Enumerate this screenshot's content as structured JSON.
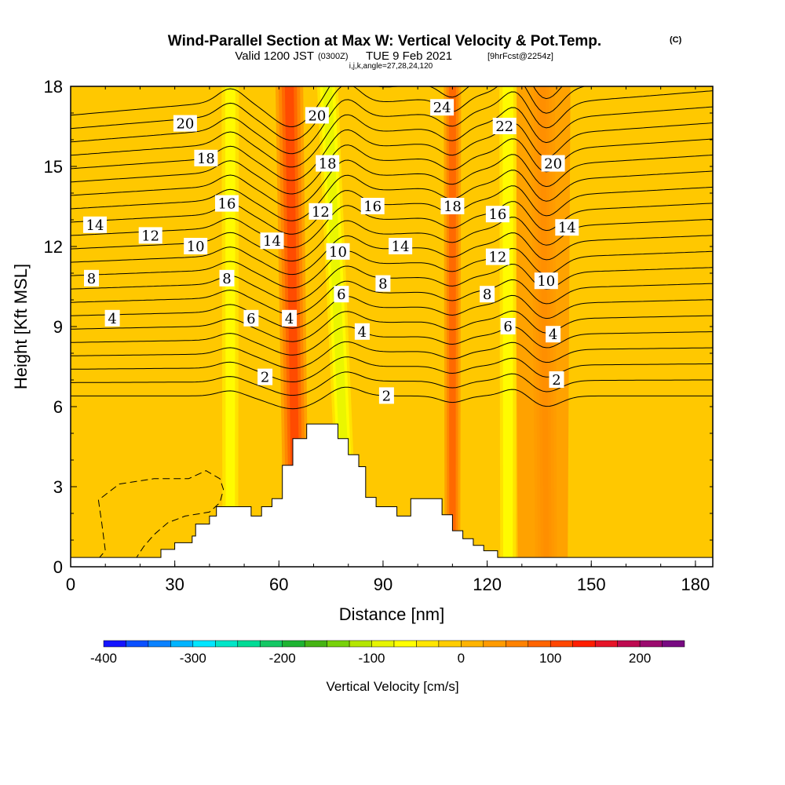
{
  "header": {
    "title": "Wind-Parallel Section at Max W: Vertical Velocity & Pot.Temp.",
    "title_mark": "(C)",
    "subtitle_main_a": "Valid 1200 JST",
    "subtitle_utc": "(0300Z)",
    "subtitle_main_b": "TUE 9 Feb 2021",
    "subtitle_fcst": "[9hrFcst@2254z]",
    "subtitle_indices": "i,j,k,angle=27,28,24,120"
  },
  "chart_data": {
    "type": "heatmap",
    "title": "Wind-Parallel Section at Max W: Vertical Velocity & Pot.Temp.",
    "xlabel": "Distance [nm]",
    "ylabel": "Height [Kft MSL]",
    "xlim": [
      0,
      185
    ],
    "ylim": [
      0,
      18
    ],
    "x_ticks": [
      "0",
      "30",
      "60",
      "90",
      "120",
      "150",
      "180"
    ],
    "y_ticks": [
      "0",
      "3",
      "6",
      "9",
      "12",
      "15",
      "18"
    ],
    "x_tick_values": [
      0,
      30,
      60,
      90,
      120,
      150,
      180
    ],
    "y_tick_values": [
      0,
      3,
      6,
      9,
      12,
      15,
      18
    ],
    "colorbar": {
      "label": "Vertical Velocity [cm/s]",
      "min": -400,
      "max": 250,
      "step": 25,
      "ticks": [
        "-400",
        "-300",
        "-200",
        "-100",
        "0",
        "100",
        "200"
      ],
      "tick_values": [
        -400,
        -300,
        -200,
        -100,
        0,
        100,
        200
      ],
      "colors": [
        "#1414ff",
        "#0a50ff",
        "#0a82ff",
        "#00b4ff",
        "#00e6ff",
        "#00e6c8",
        "#00dc96",
        "#14c864",
        "#1eb432",
        "#46b414",
        "#78d20a",
        "#b4e600",
        "#e6f500",
        "#ffff00",
        "#ffe600",
        "#ffcd00",
        "#ffb400",
        "#ff9b00",
        "#ff8200",
        "#ff6400",
        "#ff4600",
        "#ff1e00",
        "#e61428",
        "#be0a50",
        "#9b0a6e",
        "#780a82"
      ]
    },
    "terrain_kft": [
      [
        0,
        0.35
      ],
      [
        26,
        0.35
      ],
      [
        26,
        0.65
      ],
      [
        30,
        0.65
      ],
      [
        30,
        0.9
      ],
      [
        35,
        0.9
      ],
      [
        35,
        1.15
      ],
      [
        36,
        1.15
      ],
      [
        36,
        1.6
      ],
      [
        40,
        1.6
      ],
      [
        40,
        1.9
      ],
      [
        42,
        1.9
      ],
      [
        42,
        2.25
      ],
      [
        52,
        2.25
      ],
      [
        52,
        1.9
      ],
      [
        55,
        1.9
      ],
      [
        55,
        2.25
      ],
      [
        58,
        2.25
      ],
      [
        58,
        2.55
      ],
      [
        61,
        2.55
      ],
      [
        61,
        3.8
      ],
      [
        64,
        3.8
      ],
      [
        64,
        4.8
      ],
      [
        68,
        4.8
      ],
      [
        68,
        5.35
      ],
      [
        77,
        5.35
      ],
      [
        77,
        4.8
      ],
      [
        80,
        4.8
      ],
      [
        80,
        4.2
      ],
      [
        83,
        4.2
      ],
      [
        83,
        3.75
      ],
      [
        85,
        3.75
      ],
      [
        85,
        2.6
      ],
      [
        88,
        2.6
      ],
      [
        88,
        2.25
      ],
      [
        94,
        2.25
      ],
      [
        94,
        1.9
      ],
      [
        98,
        1.9
      ],
      [
        98,
        2.55
      ],
      [
        107,
        2.55
      ],
      [
        107,
        1.95
      ],
      [
        110,
        1.95
      ],
      [
        110,
        1.35
      ],
      [
        113,
        1.35
      ],
      [
        113,
        1.05
      ],
      [
        116,
        1.05
      ],
      [
        116,
        0.8
      ],
      [
        119,
        0.8
      ],
      [
        119,
        0.6
      ],
      [
        123,
        0.6
      ],
      [
        123,
        0.35
      ],
      [
        185,
        0.35
      ]
    ],
    "updraft_bands": [
      {
        "x_base": 65,
        "x_top": 63,
        "w": 110,
        "halfwidth": 4
      },
      {
        "x_base": 137,
        "x_top": 136,
        "w": 100,
        "halfwidth": 3.5
      },
      {
        "x_base": 110,
        "x_top": 110,
        "w": 85,
        "halfwidth": 2.5
      },
      {
        "x_base": 136,
        "x_top": 136,
        "w": 40,
        "halfwidth": 8
      }
    ],
    "downdraft_bands": [
      {
        "x_base": 80,
        "x_top": 74,
        "w": -90,
        "halfwidth": 3
      },
      {
        "x_base": 46,
        "x_top": 46,
        "w": -60,
        "halfwidth": 2.5
      },
      {
        "x_base": 126,
        "x_top": 126,
        "w": -65,
        "halfwidth": 2.5
      }
    ],
    "theta_contours": {
      "first_height_kft": 6.4,
      "spacing_kft": 0.55,
      "count": 22,
      "labels": [
        {
          "text": "20",
          "x": 33,
          "y": 16.6
        },
        {
          "text": "18",
          "x": 39,
          "y": 15.3
        },
        {
          "text": "16",
          "x": 45,
          "y": 13.6
        },
        {
          "text": "14",
          "x": 7,
          "y": 12.8
        },
        {
          "text": "12",
          "x": 23,
          "y": 12.4
        },
        {
          "text": "10",
          "x": 36,
          "y": 12.0
        },
        {
          "text": "8",
          "x": 6,
          "y": 10.8
        },
        {
          "text": "4",
          "x": 12,
          "y": 9.3
        },
        {
          "text": "14",
          "x": 58,
          "y": 12.2
        },
        {
          "text": "8",
          "x": 45,
          "y": 10.8
        },
        {
          "text": "6",
          "x": 52,
          "y": 9.3
        },
        {
          "text": "4",
          "x": 63,
          "y": 9.3
        },
        {
          "text": "2",
          "x": 56,
          "y": 7.1
        },
        {
          "text": "20",
          "x": 71,
          "y": 16.9
        },
        {
          "text": "18",
          "x": 74,
          "y": 15.1
        },
        {
          "text": "12",
          "x": 72,
          "y": 13.3
        },
        {
          "text": "10",
          "x": 77,
          "y": 11.8
        },
        {
          "text": "6",
          "x": 78,
          "y": 10.2
        },
        {
          "text": "4",
          "x": 84,
          "y": 8.8
        },
        {
          "text": "16",
          "x": 87,
          "y": 13.5
        },
        {
          "text": "14",
          "x": 95,
          "y": 12.0
        },
        {
          "text": "8",
          "x": 90,
          "y": 10.6
        },
        {
          "text": "2",
          "x": 91,
          "y": 6.4
        },
        {
          "text": "24",
          "x": 107,
          "y": 17.2
        },
        {
          "text": "18",
          "x": 110,
          "y": 13.5
        },
        {
          "text": "22",
          "x": 125,
          "y": 16.5
        },
        {
          "text": "16",
          "x": 123,
          "y": 13.2
        },
        {
          "text": "12",
          "x": 123,
          "y": 11.6
        },
        {
          "text": "8",
          "x": 120,
          "y": 10.2
        },
        {
          "text": "6",
          "x": 126,
          "y": 9.0
        },
        {
          "text": "20",
          "x": 139,
          "y": 15.1
        },
        {
          "text": "14",
          "x": 143,
          "y": 12.7
        },
        {
          "text": "10",
          "x": 137,
          "y": 10.7
        },
        {
          "text": "4",
          "x": 139,
          "y": 8.7
        },
        {
          "text": "2",
          "x": 140,
          "y": 7.0
        }
      ]
    },
    "negative_contours": [
      [
        [
          8,
          0.3
        ],
        [
          10,
          0.6
        ],
        [
          9,
          1.6
        ],
        [
          8,
          2.5
        ],
        [
          14,
          3.1
        ],
        [
          24,
          3.3
        ],
        [
          34,
          3.3
        ],
        [
          39,
          3.6
        ],
        [
          43,
          3.3
        ],
        [
          44,
          2.9
        ],
        [
          43,
          2.4
        ],
        [
          40,
          2.05
        ],
        [
          33,
          1.9
        ],
        [
          28,
          1.65
        ],
        [
          24,
          1.2
        ],
        [
          21,
          0.75
        ],
        [
          19,
          0.35
        ]
      ]
    ]
  }
}
